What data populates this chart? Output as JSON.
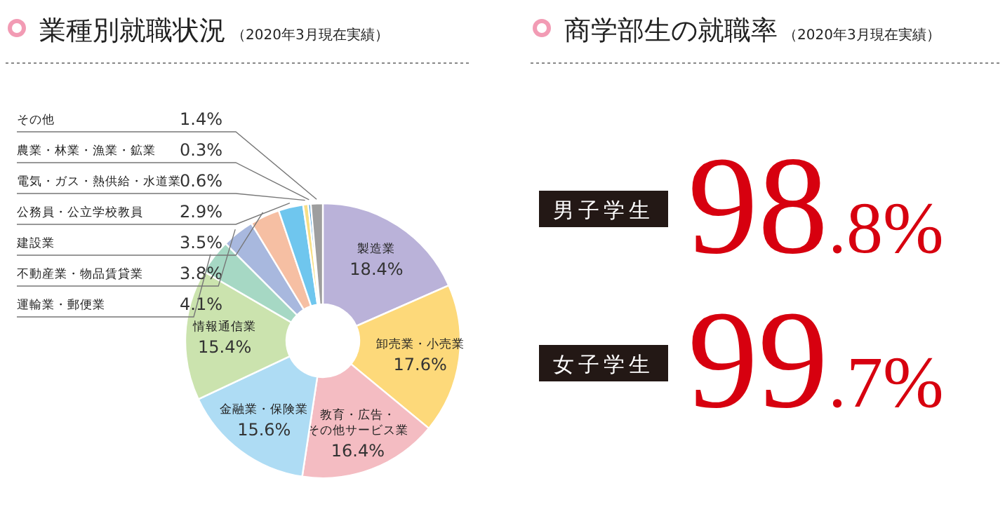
{
  "chart_data": [
    {
      "type": "donut",
      "title": "業種別就職状況",
      "subtitle": "（2020年3月現在実績）",
      "categories": [
        "製造業",
        "卸売業・小売業",
        "教育・広告・その他サービス業",
        "金融業・保険業",
        "情報通信業",
        "運輸業・郵便業",
        "不動産業・物品賃貸業",
        "建設業",
        "公務員・公立学校教員",
        "電気・ガス・熱供給・水道業",
        "農業・林業・漁業・鉱業",
        "その他"
      ],
      "values": [
        18.4,
        17.6,
        16.4,
        15.6,
        15.4,
        4.1,
        3.8,
        3.5,
        2.9,
        0.6,
        0.3,
        1.4
      ],
      "value_labels": [
        "18.4%",
        "17.6%",
        "16.4%",
        "15.6%",
        "15.4%",
        "4.1%",
        "3.8%",
        "3.5%",
        "2.9%",
        "0.6%",
        "0.3%",
        "1.4%"
      ],
      "colors": [
        "#bab2d9",
        "#fdd97a",
        "#f4bcc2",
        "#aedcf4",
        "#cbe3ae",
        "#a6d8c4",
        "#a8b8de",
        "#f6bfa3",
        "#6fc6ee",
        "#f7df86",
        "#3c98d6",
        "#9e9e9e"
      ]
    },
    {
      "type": "other",
      "title": "商学部生の就職率",
      "subtitle": "（2020年3月現在実績）",
      "categories": [
        "男子学生",
        "女子学生"
      ],
      "value_labels": [
        "98.8%",
        "99.7%"
      ]
    }
  ]
}
